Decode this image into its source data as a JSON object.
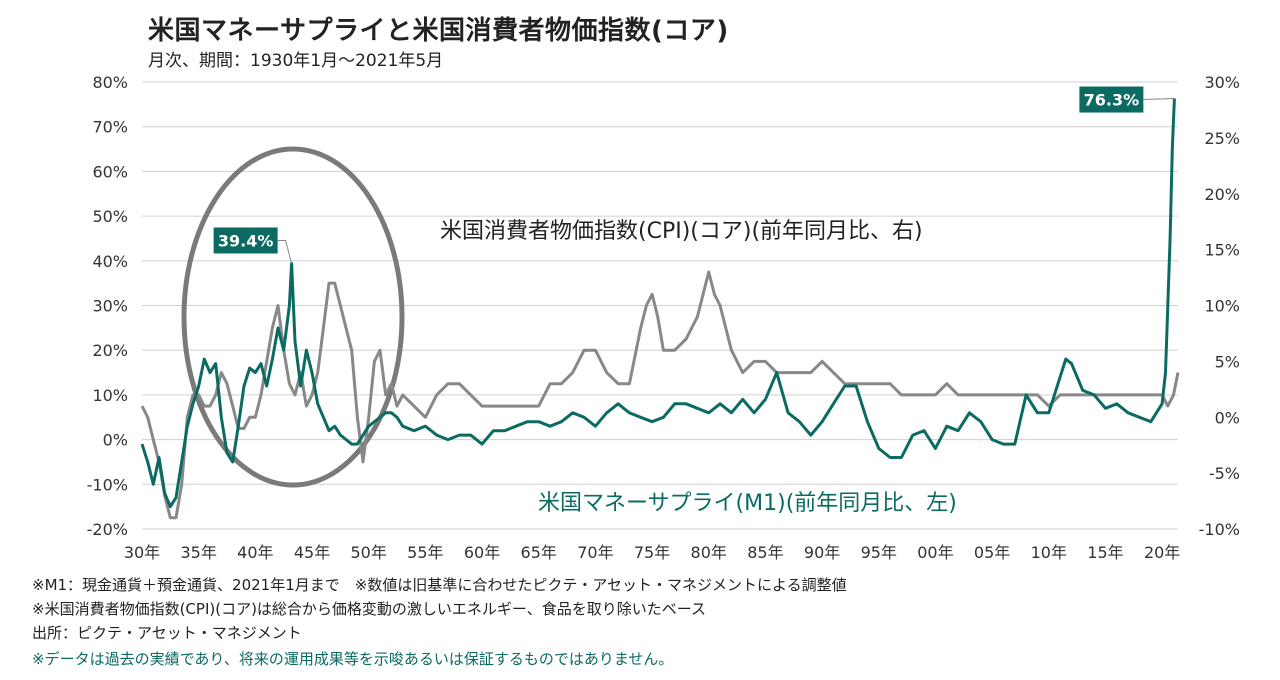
{
  "header": {
    "title": "米国マネーサプライと米国消費者物価指数(コア)",
    "subtitle": "月次、期間：1930年1月～2021年5月"
  },
  "footnotes": [
    "※M1：現金通貨＋預金通貨、2021年1月まで　※数値は旧基準に合わせたピクテ・アセット・マネジメントによる調整値",
    "※米国消費者物価指数(CPI)(コア)は総合から価格変動の激しいエネルギー、食品を取り除いたベース",
    "出所：ピクテ・アセット・マネジメント"
  ],
  "disclaimer": "※データは過去の実績であり、将来の運用成果等を示唆あるいは保証するものではありません。",
  "colors": {
    "m1": "#0b6b63",
    "cpi": "#888888",
    "grid": "#d0d0d0",
    "circle": "#7a7a7a"
  },
  "chart_data": {
    "type": "line",
    "title": "米国マネーサプライと米国消費者物価指数(コア)",
    "x_ticks": [
      "30年",
      "35年",
      "40年",
      "45年",
      "50年",
      "55年",
      "60年",
      "65年",
      "70年",
      "75年",
      "80年",
      "85年",
      "90年",
      "95年",
      "00年",
      "05年",
      "10年",
      "15年",
      "20年"
    ],
    "x_tick_years": [
      1930,
      1935,
      1940,
      1945,
      1950,
      1955,
      1960,
      1965,
      1970,
      1975,
      1980,
      1985,
      1990,
      1995,
      2000,
      2005,
      2010,
      2015,
      2020
    ],
    "xlim": [
      1930,
      2021.4
    ],
    "y_left": {
      "ticks": [
        "80%",
        "70%",
        "60%",
        "50%",
        "40%",
        "30%",
        "20%",
        "10%",
        "0%",
        "-10%",
        "-20%"
      ],
      "range": [
        -20,
        80
      ]
    },
    "y_right": {
      "ticks": [
        "30%",
        "25%",
        "20%",
        "15%",
        "10%",
        "5%",
        "0%",
        "-5%",
        "-10%"
      ],
      "range": [
        -10,
        30
      ]
    },
    "grid": "horizontal",
    "series": [
      {
        "name": "米国マネーサプライ(M1)(前年同月比、左)",
        "axis": "left",
        "x": [
          1930,
          1930.5,
          1931,
          1931.5,
          1932,
          1932.5,
          1933,
          1933.5,
          1934,
          1934.5,
          1935,
          1935.5,
          1936,
          1936.5,
          1937,
          1937.5,
          1938,
          1938.5,
          1939,
          1939.5,
          1940,
          1940.5,
          1941,
          1941.5,
          1942,
          1942.5,
          1943,
          1943.2,
          1943.5,
          1944,
          1944.5,
          1945,
          1945.5,
          1946,
          1946.5,
          1947,
          1947.5,
          1948,
          1948.5,
          1949,
          1949.5,
          1950,
          1950.5,
          1951,
          1951.5,
          1952,
          1952.5,
          1953,
          1954,
          1955,
          1956,
          1957,
          1958,
          1959,
          1960,
          1961,
          1962,
          1963,
          1964,
          1965,
          1966,
          1967,
          1968,
          1969,
          1970,
          1971,
          1972,
          1973,
          1974,
          1975,
          1976,
          1977,
          1978,
          1979,
          1980,
          1981,
          1982,
          1983,
          1984,
          1985,
          1986,
          1987,
          1988,
          1989,
          1990,
          1991,
          1992,
          1993,
          1994,
          1995,
          1996,
          1997,
          1998,
          1999,
          2000,
          2001,
          2002,
          2003,
          2004,
          2005,
          2006,
          2007,
          2008,
          2009,
          2010,
          2011,
          2011.5,
          2012,
          2013,
          2014,
          2015,
          2016,
          2017,
          2018,
          2019,
          2020,
          2020.3,
          2020.5,
          2020.7,
          2020.9,
          2021.08
        ],
        "values": [
          -1,
          -5,
          -10,
          -4,
          -12,
          -15,
          -13,
          -5,
          3,
          8,
          12,
          18,
          15,
          17,
          5,
          -3,
          -5,
          3,
          12,
          16,
          15,
          17,
          12,
          18,
          25,
          20,
          30,
          39.4,
          22,
          12,
          20,
          15,
          8,
          5,
          2,
          3,
          1,
          0,
          -1,
          -1,
          1,
          3,
          4,
          5,
          6,
          6,
          5,
          3,
          2,
          3,
          1,
          0,
          1,
          1,
          -1,
          2,
          2,
          3,
          4,
          4,
          3,
          4,
          6,
          5,
          3,
          6,
          8,
          6,
          5,
          4,
          5,
          8,
          8,
          7,
          6,
          8,
          6,
          9,
          6,
          9,
          15,
          6,
          4,
          1,
          4,
          8,
          12,
          12,
          4,
          -2,
          -4,
          -4,
          1,
          2,
          -2,
          3,
          2,
          6,
          4,
          0,
          -1,
          -1,
          10,
          6,
          6,
          14,
          18,
          17,
          11,
          10,
          7,
          8,
          6,
          5,
          4,
          8,
          15,
          30,
          45,
          65,
          76.3
        ]
      },
      {
        "name": "米国消費者物価指数(CPI)(コア)(前年同月比、右)",
        "axis": "right",
        "x": [
          1930,
          1930.5,
          1931,
          1931.5,
          1932,
          1932.5,
          1933,
          1933.5,
          1934,
          1934.5,
          1935,
          1935.5,
          1936,
          1936.5,
          1937,
          1937.5,
          1938,
          1938.5,
          1939,
          1939.5,
          1940,
          1940.5,
          1941,
          1941.5,
          1942,
          1942.5,
          1943,
          1943.5,
          1944,
          1944.5,
          1945,
          1945.5,
          1946,
          1946.5,
          1947,
          1947.5,
          1948,
          1948.5,
          1949,
          1949.5,
          1950,
          1950.5,
          1951,
          1951.5,
          1952,
          1952.5,
          1953,
          1954,
          1955,
          1956,
          1957,
          1958,
          1959,
          1960,
          1961,
          1962,
          1963,
          1964,
          1965,
          1966,
          1967,
          1968,
          1969,
          1970,
          1971,
          1972,
          1973,
          1974,
          1974.5,
          1975,
          1975.5,
          1976,
          1977,
          1978,
          1979,
          1979.5,
          1980,
          1980.5,
          1981,
          1982,
          1983,
          1984,
          1985,
          1986,
          1987,
          1988,
          1989,
          1990,
          1991,
          1992,
          1993,
          1994,
          1995,
          1996,
          1997,
          1998,
          1999,
          2000,
          2001,
          2002,
          2003,
          2004,
          2005,
          2006,
          2007,
          2008,
          2009,
          2010,
          2011,
          2012,
          2013,
          2014,
          2015,
          2016,
          2017,
          2018,
          2019,
          2020,
          2020.5,
          2021.0,
          2021.4
        ],
        "values": [
          1,
          0,
          -2,
          -4,
          -7,
          -9,
          -9,
          -6,
          0,
          2,
          2,
          1,
          1,
          2,
          4,
          3,
          1,
          -1,
          -1,
          0,
          0,
          2,
          5,
          8,
          10,
          6,
          3,
          2,
          4,
          1,
          2,
          4,
          8,
          12,
          12,
          10,
          8,
          6,
          0,
          -4,
          0,
          5,
          6,
          2,
          3,
          1,
          2,
          1,
          0,
          2,
          3,
          3,
          2,
          1,
          1,
          1,
          1,
          1,
          1,
          3,
          3,
          4,
          6,
          6,
          4,
          3,
          3,
          8,
          10,
          11,
          9,
          6,
          6,
          7,
          9,
          11,
          13,
          11,
          10,
          6,
          4,
          5,
          5,
          4,
          4,
          4,
          4,
          5,
          4,
          3,
          3,
          3,
          3,
          3,
          2,
          2,
          2,
          2,
          3,
          2,
          2,
          2,
          2,
          2,
          2,
          2,
          2,
          1,
          2,
          2,
          2,
          2,
          2,
          2,
          2,
          2,
          2,
          2,
          1,
          2,
          4
        ]
      }
    ],
    "annotations": [
      {
        "text": "39.4%",
        "x": 1943.2,
        "y": 39.4,
        "series": 0
      },
      {
        "text": "76.3%",
        "x": 2021.08,
        "y": 76.3,
        "series": 0
      }
    ]
  }
}
